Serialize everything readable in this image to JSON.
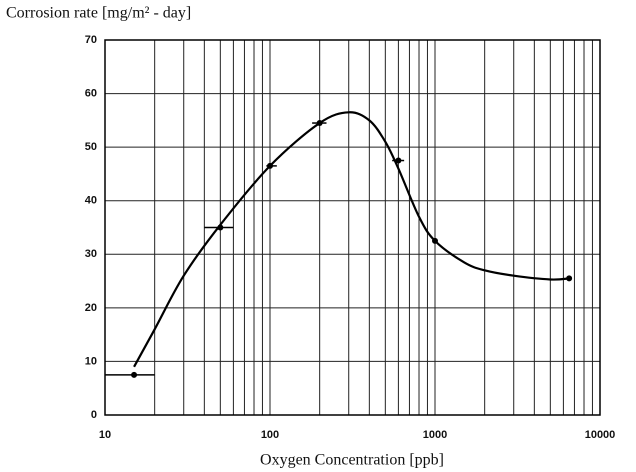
{
  "chart_data": {
    "type": "scatter",
    "title": "Corrosion rate [mg/m² - day]",
    "x_label": "Oxygen Concentration [ppb]",
    "x": [
      15,
      50,
      100,
      200,
      600,
      1000,
      6500
    ],
    "values": [
      7.5,
      35,
      46.5,
      54.5,
      47.5,
      32.5,
      25.5
    ],
    "xrange": [
      [
        10,
        20
      ],
      [
        40,
        60
      ],
      [
        95,
        110
      ],
      [
        180,
        220
      ],
      [
        550,
        650
      ],
      null,
      null
    ],
    "curve": {
      "x": [
        15,
        20,
        30,
        50,
        100,
        200,
        300,
        400,
        500,
        600,
        800,
        1000,
        1500,
        2000,
        3000,
        5000,
        6500
      ],
      "values": [
        9,
        16,
        26,
        35.5,
        46.5,
        54.5,
        56.5,
        55,
        51,
        46,
        37,
        32.5,
        28.5,
        27,
        26,
        25.3,
        25.5
      ]
    },
    "color": "#000000",
    "xscale": "log",
    "xlim": [
      10,
      10000
    ],
    "xticks": [
      10,
      100,
      1000,
      10000
    ],
    "xminorticks": [
      20,
      30,
      40,
      50,
      60,
      70,
      80,
      90,
      200,
      300,
      400,
      500,
      600,
      700,
      800,
      900,
      2000,
      3000,
      4000,
      5000,
      6000,
      7000,
      8000,
      9000
    ],
    "ylim": [
      0,
      70
    ],
    "yticks": [
      0,
      10,
      20,
      30,
      40,
      50,
      60,
      70
    ],
    "grid": true
  }
}
